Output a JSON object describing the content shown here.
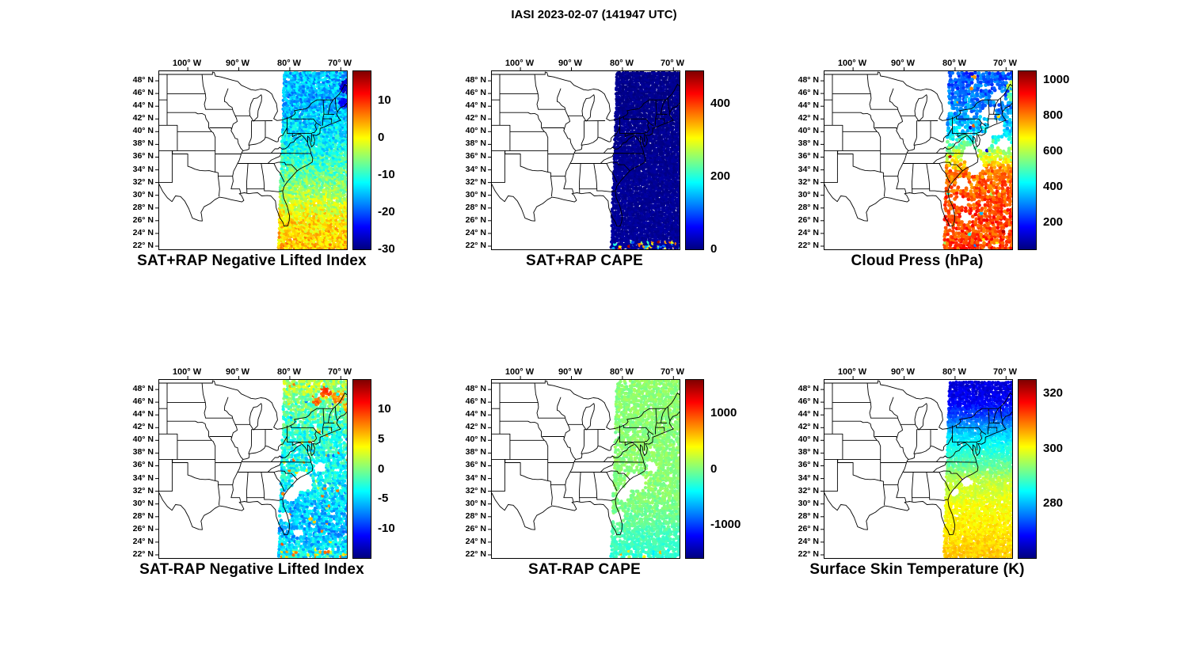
{
  "title": "IASI 2023-02-07 (141947 UTC)",
  "colormap": "jet",
  "axes": {
    "lon_range": [
      -105.6,
      -68.8
    ],
    "lat_range": [
      21.5,
      49.5
    ],
    "lon_ticks": [
      {
        "value": -100,
        "label": "100° W"
      },
      {
        "value": -90,
        "label": "90° W"
      },
      {
        "value": -80,
        "label": "80° W"
      },
      {
        "value": -70,
        "label": "70° W"
      }
    ],
    "lat_ticks": [
      {
        "value": 48,
        "label": "48° N"
      },
      {
        "value": 46,
        "label": "46° N"
      },
      {
        "value": 44,
        "label": "44° N"
      },
      {
        "value": 42,
        "label": "42° N"
      },
      {
        "value": 40,
        "label": "40° N"
      },
      {
        "value": 38,
        "label": "38° N"
      },
      {
        "value": 36,
        "label": "36° N"
      },
      {
        "value": 34,
        "label": "34° N"
      },
      {
        "value": 32,
        "label": "32° N"
      },
      {
        "value": 30,
        "label": "30° N"
      },
      {
        "value": 28,
        "label": "28° N"
      },
      {
        "value": 26,
        "label": "26° N"
      },
      {
        "value": 24,
        "label": "24° N"
      },
      {
        "value": 22,
        "label": "22° N"
      }
    ]
  },
  "satellite_swath": {
    "center_lon_at_48N": -74.2,
    "tilt_deg_per_deg_lat": 0.042,
    "half_width_deg": 6.8,
    "lat_range": [
      21.7,
      49.4
    ]
  },
  "chart_data": [
    {
      "type": "scatter",
      "position": "top-left",
      "title": "SAT+RAP Negative Lifted Index",
      "colorbar": {
        "range": [
          -30,
          18
        ],
        "ticks": [
          10,
          0,
          -10,
          -20,
          -30
        ]
      },
      "scatter": {
        "seed": 101,
        "lon_step": 0.42,
        "lat_step": 0.34,
        "dot_radius": 2.1,
        "gap_prob": 0.02,
        "noise": 4,
        "profile": [
          [
            22,
            3
          ],
          [
            26,
            1
          ],
          [
            30,
            -4
          ],
          [
            34,
            -8
          ],
          [
            38,
            -12
          ],
          [
            42,
            -14
          ],
          [
            45,
            -16
          ],
          [
            48,
            -15
          ]
        ],
        "holes": [],
        "patches": [
          [
            47.2,
            -68.6,
            1.2,
            -26
          ],
          [
            44.6,
            -69.3,
            0.8,
            -23
          ]
        ]
      }
    },
    {
      "type": "scatter",
      "position": "top-middle",
      "title": "SAT+RAP CAPE",
      "colorbar": {
        "range": [
          0,
          490
        ],
        "ticks": [
          0,
          200,
          400
        ]
      },
      "scatter": {
        "seed": 202,
        "lon_step": 0.42,
        "lat_step": 0.34,
        "dot_radius": 2.1,
        "gap_prob": 0,
        "noise": 8,
        "profile": [
          [
            22,
            12
          ],
          [
            48,
            6
          ]
        ],
        "holes": [],
        "patches": [],
        "speckle": {
          "lat_below": 22.7,
          "prob": 0.28,
          "range": [
            60,
            480
          ]
        }
      }
    },
    {
      "type": "scatter",
      "position": "top-right",
      "title": "Cloud Press (hPa)",
      "colorbar": {
        "range": [
          50,
          1050
        ],
        "ticks": [
          1000,
          800,
          600,
          400,
          200
        ]
      },
      "scatter": {
        "seed": 303,
        "lon_step": 0.55,
        "lat_step": 0.45,
        "dot_radius": 2.4,
        "gap_prob": 0.15,
        "noise": 70,
        "profile": [
          [
            22,
            860
          ],
          [
            26,
            870
          ],
          [
            30,
            850
          ],
          [
            34,
            800
          ],
          [
            36,
            650
          ],
          [
            38,
            520
          ],
          [
            40,
            380
          ],
          [
            44,
            300
          ],
          [
            48,
            260
          ]
        ],
        "holes": [
          [
            45.5,
            -71.5,
            1.0
          ],
          [
            43,
            -73.5,
            1.1
          ],
          [
            40.5,
            -72,
            1.3
          ],
          [
            38.5,
            -74.5,
            1.5
          ],
          [
            36.5,
            -77,
            1.2
          ],
          [
            34.5,
            -76,
            1.3
          ],
          [
            32,
            -78.5,
            1.0
          ],
          [
            29,
            -79,
            0.9
          ],
          [
            26.5,
            -78,
            0.8
          ],
          [
            38,
            -70.5,
            1.0
          ]
        ],
        "patches": [
          [
            47,
            -68.4,
            1.0,
            600
          ],
          [
            45.6,
            -69,
            0.7,
            520
          ]
        ],
        "outlier": {
          "prob": 0.03,
          "range": [
            120,
            1020
          ]
        }
      }
    },
    {
      "type": "scatter",
      "position": "bottom-left",
      "title": "SAT-RAP Negative Lifted Index",
      "colorbar": {
        "range": [
          -15,
          15
        ],
        "ticks": [
          10,
          5,
          0,
          -5,
          -10
        ]
      },
      "scatter": {
        "seed": 404,
        "lon_step": 0.48,
        "lat_step": 0.4,
        "dot_radius": 2.2,
        "gap_prob": 0.1,
        "noise": 2.5,
        "profile": [
          [
            22,
            -4
          ],
          [
            26,
            -6
          ],
          [
            30,
            -5
          ],
          [
            34,
            -4
          ],
          [
            38,
            -3
          ],
          [
            42,
            -2
          ],
          [
            45,
            -1
          ],
          [
            48,
            1
          ]
        ],
        "holes": [
          [
            33.5,
            -77.5,
            1.5
          ],
          [
            31.5,
            -79.8,
            1.1
          ],
          [
            28,
            -80.8,
            0.9
          ],
          [
            35.8,
            -74.2,
            0.8
          ],
          [
            25.5,
            -78.5,
            0.7
          ]
        ],
        "patches": [
          [
            46.8,
            -70.3,
            1.0,
            7
          ],
          [
            47.7,
            -73.0,
            0.9,
            9
          ],
          [
            45.2,
            -68.6,
            0.7,
            6
          ],
          [
            46.2,
            -74.6,
            0.6,
            8
          ]
        ],
        "outlier": {
          "prob": 0.04,
          "range": [
            -9,
            9
          ]
        },
        "speckle": {
          "lat_below": 22.8,
          "prob": 0.3,
          "range": [
            2,
            8
          ]
        }
      }
    },
    {
      "type": "scatter",
      "position": "bottom-middle",
      "title": "SAT-RAP CAPE",
      "colorbar": {
        "range": [
          -1600,
          1600
        ],
        "ticks": [
          1000,
          0,
          -1000
        ]
      },
      "scatter": {
        "seed": 505,
        "lon_step": 0.48,
        "lat_step": 0.4,
        "dot_radius": 2.2,
        "gap_prob": 0.1,
        "noise": 90,
        "profile": [
          [
            22,
            -250
          ],
          [
            25,
            -180
          ],
          [
            28,
            -60
          ],
          [
            32,
            30
          ],
          [
            48,
            40
          ]
        ],
        "holes": [
          [
            33.5,
            -77.5,
            1.5
          ],
          [
            31.5,
            -79.8,
            1.1
          ],
          [
            28,
            -80.8,
            0.9
          ],
          [
            35.8,
            -74.2,
            0.8
          ]
        ],
        "patches": [],
        "speckle": {
          "lat_below": 22.8,
          "prob": 0.12,
          "range": [
            -700,
            800
          ]
        }
      }
    },
    {
      "type": "scatter",
      "position": "bottom-right",
      "title": "Surface Skin Temperature (K)",
      "colorbar": {
        "range": [
          260,
          325
        ],
        "ticks": [
          320,
          300,
          280
        ]
      },
      "scatter": {
        "seed": 606,
        "lon_step": 0.44,
        "lat_step": 0.36,
        "dot_radius": 2.1,
        "gap_prob": 0.03,
        "noise": 2,
        "profile": [
          [
            22,
            304
          ],
          [
            26,
            302
          ],
          [
            30,
            300
          ],
          [
            32,
            298
          ],
          [
            34,
            296
          ],
          [
            36,
            291
          ],
          [
            38,
            287
          ],
          [
            40,
            284
          ],
          [
            42,
            279
          ],
          [
            44,
            272
          ],
          [
            46,
            268
          ],
          [
            48,
            266
          ]
        ],
        "holes": [
          [
            33.5,
            -77.7,
            0.8
          ],
          [
            31.8,
            -79.9,
            0.6
          ]
        ],
        "patches": []
      }
    }
  ]
}
